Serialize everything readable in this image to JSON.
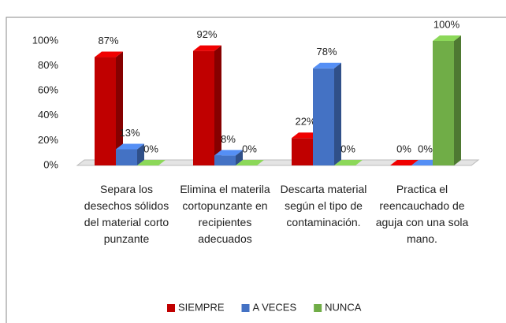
{
  "chart_data": {
    "type": "bar3d",
    "categories": [
      "Separa los desechos sólidos del material corto punzante",
      "Elimina el materila cortopunzante en recipientes adecuados",
      "Descarta material según el tipo de contaminación.",
      "Practica el reencauchado de aguja con una sola mano."
    ],
    "series": [
      {
        "name": "SIEMPRE",
        "color": "#c00000",
        "values": [
          87,
          92,
          22,
          0
        ],
        "value_labels": [
          "87%",
          "92%",
          "22%",
          "0%"
        ]
      },
      {
        "name": "A VECES",
        "color": "#4472c4",
        "values": [
          13,
          8,
          78,
          0
        ],
        "value_labels": [
          "13%",
          "8%",
          "78%",
          "0%"
        ]
      },
      {
        "name": "NUNCA",
        "color": "#70ad47",
        "values": [
          0,
          0,
          0,
          100
        ],
        "value_labels": [
          "0%",
          "0%",
          "0%",
          "100%"
        ]
      }
    ],
    "ylim": [
      0,
      100
    ],
    "yticks": [
      {
        "value": 0,
        "label": "0%"
      },
      {
        "value": 20,
        "label": "20%"
      },
      {
        "value": 40,
        "label": "40%"
      },
      {
        "value": 60,
        "label": "60%"
      },
      {
        "value": 80,
        "label": "80%"
      },
      {
        "value": 100,
        "label": "100%"
      }
    ],
    "grid": false,
    "legend": "bottom"
  }
}
